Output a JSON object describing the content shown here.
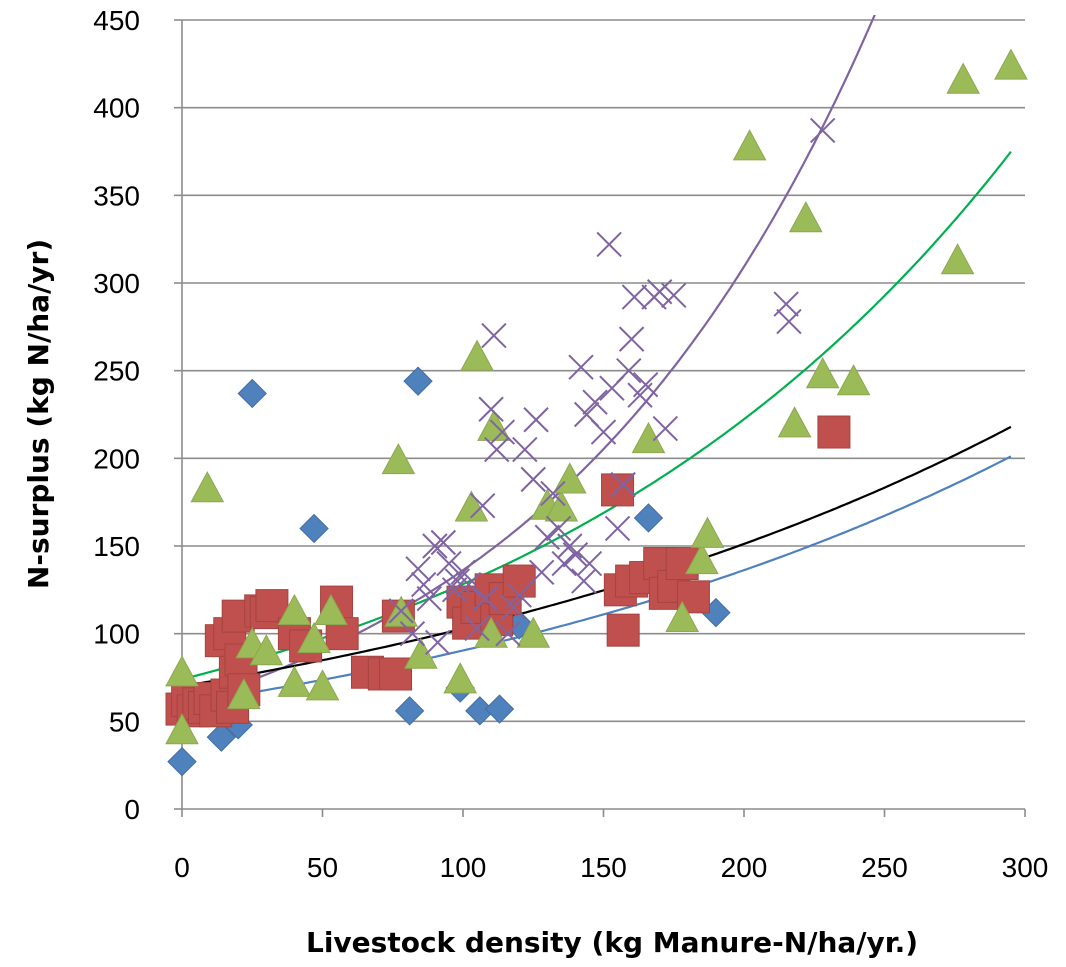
{
  "chart_data": {
    "type": "scatter",
    "title": "",
    "xlabel": "Livestock density (kg Manure-N/ha/yr.)",
    "ylabel": "N-surplus (kg N/ha/yr)",
    "xlim": [
      0,
      300
    ],
    "ylim": [
      0,
      450
    ],
    "x_ticks": [
      "0",
      "50",
      "100",
      "150",
      "200",
      "250",
      "300"
    ],
    "y_ticks": [
      "0",
      "50",
      "100",
      "150",
      "200",
      "250",
      "300",
      "350",
      "400",
      "450"
    ],
    "grid": "horizontal",
    "legend": "none",
    "colors": {
      "blue": "#4F81BD",
      "red": "#C0504D",
      "green": "#9BBB59",
      "purple": "#8064A2",
      "black": "#000000",
      "green_line": "#00B050"
    },
    "series": [
      {
        "marker": "diamond",
        "color": "#4F81BD",
        "points": [
          [
            0,
            27
          ],
          [
            14,
            41
          ],
          [
            20,
            48
          ],
          [
            25,
            237
          ],
          [
            47,
            160
          ],
          [
            81,
            56
          ],
          [
            84,
            244
          ],
          [
            99,
            69
          ],
          [
            106,
            56
          ],
          [
            113,
            57
          ],
          [
            120,
            105
          ],
          [
            166,
            166
          ],
          [
            190,
            112
          ]
        ]
      },
      {
        "marker": "square",
        "color": "#C0504D",
        "points": [
          [
            0,
            57
          ],
          [
            2,
            62
          ],
          [
            4,
            56
          ],
          [
            6,
            60
          ],
          [
            8,
            58
          ],
          [
            10,
            63
          ],
          [
            12,
            56
          ],
          [
            14,
            96
          ],
          [
            16,
            65
          ],
          [
            17,
            100
          ],
          [
            18,
            58
          ],
          [
            19,
            78
          ],
          [
            20,
            110
          ],
          [
            21,
            85
          ],
          [
            22,
            68
          ],
          [
            28,
            113
          ],
          [
            30,
            112
          ],
          [
            32,
            116
          ],
          [
            40,
            100
          ],
          [
            44,
            93
          ],
          [
            55,
            118
          ],
          [
            57,
            100
          ],
          [
            66,
            78
          ],
          [
            72,
            77
          ],
          [
            76,
            77
          ],
          [
            77,
            110
          ],
          [
            100,
            118
          ],
          [
            102,
            106
          ],
          [
            105,
            115
          ],
          [
            110,
            125
          ],
          [
            112,
            108
          ],
          [
            115,
            120
          ],
          [
            120,
            130
          ],
          [
            155,
            182
          ],
          [
            156,
            125
          ],
          [
            157,
            102
          ],
          [
            160,
            130
          ],
          [
            165,
            132
          ],
          [
            170,
            140
          ],
          [
            172,
            123
          ],
          [
            175,
            127
          ],
          [
            178,
            140
          ],
          [
            182,
            121
          ],
          [
            232,
            215
          ]
        ]
      },
      {
        "marker": "triangle",
        "color": "#9BBB59",
        "points": [
          [
            0,
            45
          ],
          [
            0,
            78
          ],
          [
            9,
            183
          ],
          [
            22,
            65
          ],
          [
            25,
            94
          ],
          [
            30,
            90
          ],
          [
            40,
            113
          ],
          [
            40,
            72
          ],
          [
            47,
            97
          ],
          [
            50,
            70
          ],
          [
            53,
            113
          ],
          [
            77,
            199
          ],
          [
            78,
            112
          ],
          [
            85,
            88
          ],
          [
            99,
            74
          ],
          [
            103,
            172
          ],
          [
            105,
            258
          ],
          [
            110,
            100
          ],
          [
            111,
            218
          ],
          [
            125,
            100
          ],
          [
            130,
            173
          ],
          [
            135,
            172
          ],
          [
            138,
            188
          ],
          [
            166,
            211
          ],
          [
            178,
            109
          ],
          [
            185,
            142
          ],
          [
            187,
            157
          ],
          [
            202,
            378
          ],
          [
            218,
            220
          ],
          [
            222,
            337
          ],
          [
            228,
            248
          ],
          [
            239,
            244
          ],
          [
            276,
            313
          ],
          [
            278,
            416
          ],
          [
            295,
            424
          ]
        ]
      },
      {
        "marker": "x",
        "color": "#8064A2",
        "points": [
          [
            78,
            113
          ],
          [
            82,
            100
          ],
          [
            84,
            137
          ],
          [
            86,
            128
          ],
          [
            88,
            120
          ],
          [
            90,
            150
          ],
          [
            91,
            95
          ],
          [
            93,
            152
          ],
          [
            95,
            140
          ],
          [
            97,
            125
          ],
          [
            98,
            130
          ],
          [
            100,
            135
          ],
          [
            102,
            128
          ],
          [
            105,
            103
          ],
          [
            107,
            173
          ],
          [
            108,
            120
          ],
          [
            110,
            228
          ],
          [
            111,
            270
          ],
          [
            112,
            205
          ],
          [
            114,
            215
          ],
          [
            116,
            100
          ],
          [
            118,
            115
          ],
          [
            120,
            122
          ],
          [
            122,
            205
          ],
          [
            125,
            188
          ],
          [
            126,
            222
          ],
          [
            128,
            135
          ],
          [
            130,
            155
          ],
          [
            132,
            180
          ],
          [
            134,
            160
          ],
          [
            136,
            140
          ],
          [
            138,
            150
          ],
          [
            140,
            145
          ],
          [
            142,
            252
          ],
          [
            143,
            130
          ],
          [
            144,
            225
          ],
          [
            145,
            140
          ],
          [
            147,
            232
          ],
          [
            150,
            215
          ],
          [
            152,
            322
          ],
          [
            153,
            240
          ],
          [
            155,
            160
          ],
          [
            157,
            185
          ],
          [
            159,
            250
          ],
          [
            160,
            268
          ],
          [
            161,
            292
          ],
          [
            163,
            236
          ],
          [
            165,
            242
          ],
          [
            168,
            292
          ],
          [
            170,
            295
          ],
          [
            172,
            217
          ],
          [
            175,
            293
          ],
          [
            215,
            288
          ],
          [
            216,
            278
          ],
          [
            228,
            387
          ]
        ]
      }
    ],
    "trendlines": [
      {
        "type": "exponential",
        "color": "#8064A2",
        "a": 60,
        "b": 0.0082,
        "x_range": [
          0,
          300
        ]
      },
      {
        "type": "exponential",
        "color": "#00B050",
        "a": 74,
        "b": 0.0055,
        "x_range": [
          0,
          295
        ]
      },
      {
        "type": "exponential",
        "color": "#000000",
        "a": 70,
        "b": 0.00385,
        "x_range": [
          0,
          295
        ]
      },
      {
        "type": "exponential",
        "color": "#4F81BD",
        "a": 60,
        "b": 0.0041,
        "x_range": [
          0,
          295
        ]
      }
    ]
  }
}
